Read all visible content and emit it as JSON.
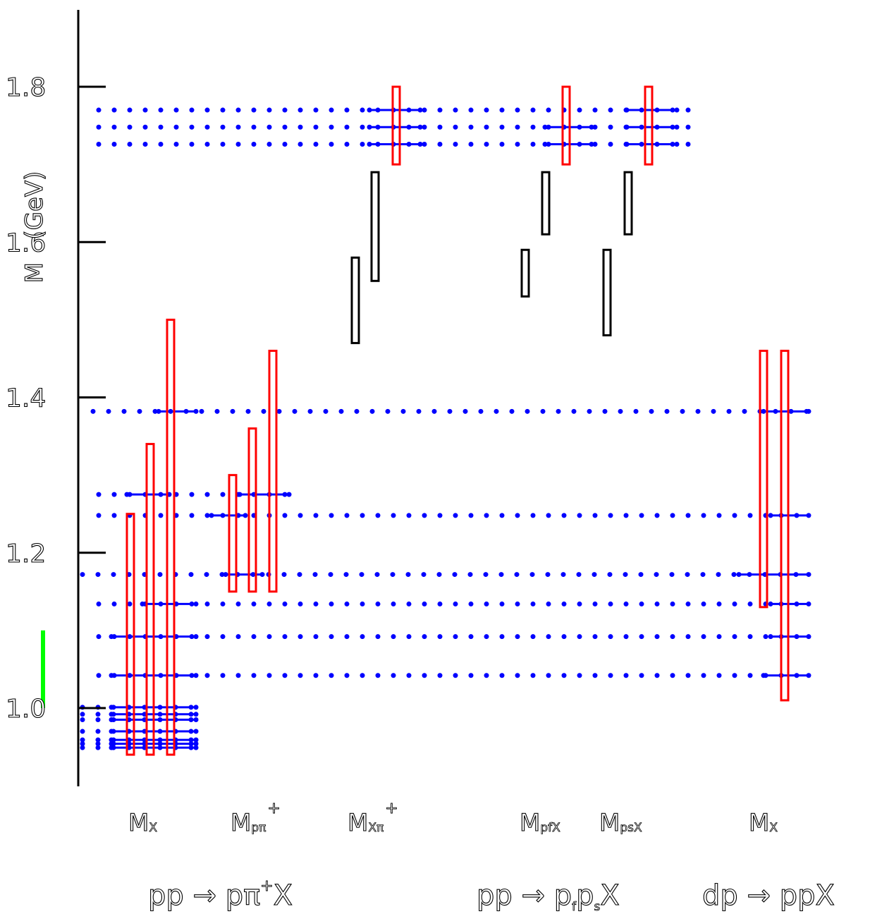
{
  "chart_data": {
    "type": "scatter",
    "ylabel": "M   (GeV)",
    "ylim": [
      0.9,
      1.89
    ],
    "yticks": [
      "1.0",
      "1.2",
      "1.4",
      "1.6",
      "1.8"
    ],
    "ytick_values": [
      1.0,
      1.2,
      1.4,
      1.6,
      1.8
    ],
    "column_labels": [
      {
        "main": "M",
        "sub": "X",
        "sup": ""
      },
      {
        "main": "M",
        "sub": "pπ",
        "sup": "+"
      },
      {
        "main": "M",
        "sub": "Xπ",
        "sup": "+"
      },
      {
        "main": "M",
        "sub": "pfX",
        "sup": ""
      },
      {
        "main": "M",
        "sub": "psX",
        "sup": ""
      },
      {
        "main": "M",
        "sub": "X",
        "sup": ""
      }
    ],
    "process_labels": [
      {
        "parts": [
          {
            "t": "pp → pπ",
            "k": "n"
          },
          {
            "t": "+",
            "k": "sup"
          },
          {
            "t": "X",
            "k": "n"
          }
        ]
      },
      {
        "parts": [
          {
            "t": "pp → p",
            "k": "n"
          },
          {
            "t": "f",
            "k": "sub"
          },
          {
            "t": "p",
            "k": "n"
          },
          {
            "t": "s",
            "k": "sub"
          },
          {
            "t": "X",
            "k": "n"
          }
        ]
      },
      {
        "parts": [
          {
            "t": "dp → ppX",
            "k": "n"
          }
        ]
      }
    ],
    "colors": {
      "window": "#ff0000",
      "no_signal_window": "#000000",
      "level": "#0000ff",
      "reference": "#00ff00",
      "axis": "#000000"
    },
    "dotted_levels": [
      {
        "mass": 1.77,
        "x_range": [
          140,
          985
        ]
      },
      {
        "mass": 1.748,
        "x_range": [
          140,
          985
        ]
      },
      {
        "mass": 1.726,
        "x_range": [
          140,
          985
        ]
      },
      {
        "mass": 1.382,
        "x_range": [
          132,
          1147
        ]
      },
      {
        "mass": 1.275,
        "x_range": [
          140,
          410
        ]
      },
      {
        "mass": 1.248,
        "x_range": [
          140,
          1147
        ]
      },
      {
        "mass": 1.172,
        "x_range": [
          117,
          1147
        ]
      },
      {
        "mass": 1.134,
        "x_range": [
          140,
          1147
        ]
      },
      {
        "mass": 1.092,
        "x_range": [
          140,
          1147
        ]
      },
      {
        "mass": 1.042,
        "x_range": [
          140,
          1147
        ]
      },
      {
        "mass": 1.001,
        "x_range": [
          117,
          278
        ]
      },
      {
        "mass": 0.992,
        "x_range": [
          117,
          278
        ]
      },
      {
        "mass": 0.985,
        "x_range": [
          117,
          278
        ]
      },
      {
        "mass": 0.97,
        "x_range": [
          117,
          278
        ]
      },
      {
        "mass": 0.959,
        "x_range": [
          117,
          278
        ]
      },
      {
        "mass": 0.954,
        "x_range": [
          117,
          278
        ]
      },
      {
        "mass": 0.949,
        "x_range": [
          117,
          278
        ]
      }
    ],
    "windows": [
      {
        "x": 185,
        "y_range": [
          0.94,
          1.25
        ],
        "kind": "red"
      },
      {
        "x": 213,
        "y_range": [
          0.94,
          1.34
        ],
        "kind": "red"
      },
      {
        "x": 242,
        "y_range": [
          0.94,
          1.5
        ],
        "kind": "red"
      },
      {
        "x": 330,
        "y_range": [
          1.15,
          1.3
        ],
        "kind": "red"
      },
      {
        "x": 358,
        "y_range": [
          1.15,
          1.36
        ],
        "kind": "red"
      },
      {
        "x": 387,
        "y_range": [
          1.15,
          1.46
        ],
        "kind": "red"
      },
      {
        "x": 504,
        "y_range": [
          1.47,
          1.58
        ],
        "kind": "black"
      },
      {
        "x": 532,
        "y_range": [
          1.55,
          1.69
        ],
        "kind": "black"
      },
      {
        "x": 562,
        "y_range": [
          1.7,
          1.8
        ],
        "kind": "red"
      },
      {
        "x": 745,
        "y_range": [
          1.53,
          1.59
        ],
        "kind": "black"
      },
      {
        "x": 774,
        "y_range": [
          1.61,
          1.69
        ],
        "kind": "black"
      },
      {
        "x": 803,
        "y_range": [
          1.7,
          1.8
        ],
        "kind": "red"
      },
      {
        "x": 861,
        "y_range": [
          1.48,
          1.59
        ],
        "kind": "black"
      },
      {
        "x": 891,
        "y_range": [
          1.61,
          1.69
        ],
        "kind": "black"
      },
      {
        "x": 920,
        "y_range": [
          1.7,
          1.8
        ],
        "kind": "red"
      },
      {
        "x": 1083,
        "y_range": [
          1.13,
          1.46
        ],
        "kind": "red"
      },
      {
        "x": 1113,
        "y_range": [
          1.01,
          1.46
        ],
        "kind": "red"
      }
    ],
    "segments": [
      {
        "mass": 1.77,
        "x_range": [
          524,
          596
        ]
      },
      {
        "mass": 1.748,
        "x_range": [
          524,
          596
        ]
      },
      {
        "mass": 1.726,
        "x_range": [
          524,
          596
        ]
      },
      {
        "mass": 1.748,
        "x_range": [
          773,
          839
        ]
      },
      {
        "mass": 1.726,
        "x_range": [
          773,
          839
        ]
      },
      {
        "mass": 1.77,
        "x_range": [
          889,
          960
        ]
      },
      {
        "mass": 1.748,
        "x_range": [
          889,
          960
        ]
      },
      {
        "mass": 1.726,
        "x_range": [
          889,
          960
        ]
      },
      {
        "mass": 1.382,
        "x_range": [
          225,
          278
        ]
      },
      {
        "mass": 1.275,
        "x_range": [
          180,
          240
        ]
      },
      {
        "mass": 1.275,
        "x_range": [
          340,
          410
        ]
      },
      {
        "mass": 1.248,
        "x_range": [
          300,
          348
        ]
      },
      {
        "mass": 1.172,
        "x_range": [
          320,
          372
        ]
      },
      {
        "mass": 1.134,
        "x_range": [
          202,
          278
        ]
      },
      {
        "mass": 1.092,
        "x_range": [
          158,
          278
        ]
      },
      {
        "mass": 1.042,
        "x_range": [
          158,
          278
        ]
      },
      {
        "mass": 1.001,
        "x_range": [
          158,
          278
        ]
      },
      {
        "mass": 0.992,
        "x_range": [
          158,
          278
        ]
      },
      {
        "mass": 0.985,
        "x_range": [
          158,
          278
        ]
      },
      {
        "mass": 0.97,
        "x_range": [
          158,
          278
        ]
      },
      {
        "mass": 0.959,
        "x_range": [
          158,
          278
        ]
      },
      {
        "mass": 0.954,
        "x_range": [
          158,
          278
        ]
      },
      {
        "mass": 0.949,
        "x_range": [
          158,
          278
        ]
      },
      {
        "mass": 1.382,
        "x_range": [
          1083,
          1147
        ]
      },
      {
        "mass": 1.248,
        "x_range": [
          1093,
          1147
        ]
      },
      {
        "mass": 1.172,
        "x_range": [
          1048,
          1147
        ]
      },
      {
        "mass": 1.134,
        "x_range": [
          1093,
          1147
        ]
      },
      {
        "mass": 1.092,
        "x_range": [
          1093,
          1147
        ]
      },
      {
        "mass": 1.042,
        "x_range": [
          1083,
          1147
        ]
      }
    ],
    "reference_bar": {
      "y_range": [
        1.0,
        1.1
      ]
    },
    "grid": false,
    "legend": "none"
  }
}
